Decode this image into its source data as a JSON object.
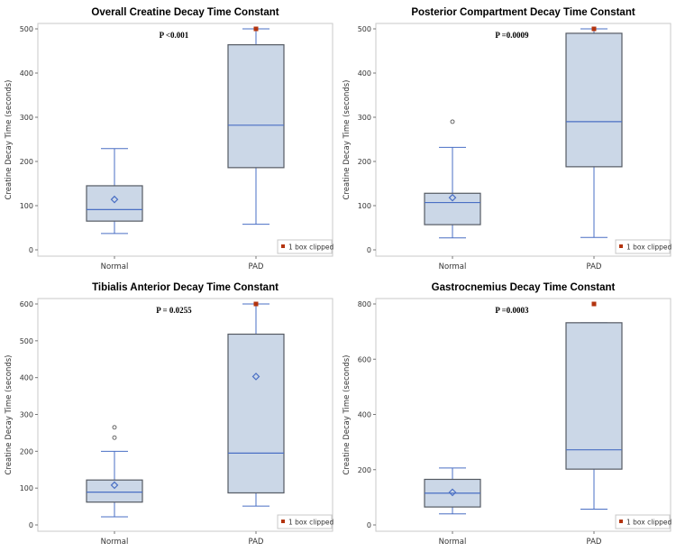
{
  "colors": {
    "box_fill": "#cbd7e7",
    "box_edge": "#555a63",
    "whisker": "#4a6fc4",
    "clipped_marker": "#b3340f",
    "outlier": "#555555",
    "frame": "#c8c8c8"
  },
  "chart_data": [
    {
      "type": "box",
      "title": "Overall Creatine Decay Time Constant",
      "ylabel": "Creatine Decay Time (seconds)",
      "ylim": [
        0,
        500
      ],
      "yticks": [
        "0",
        "100",
        "200",
        "300",
        "400",
        "500"
      ],
      "categories": [
        "Normal",
        "PAD"
      ],
      "annotation": "P <0.001",
      "legend": "1 box clipped",
      "legend_position": "bottom-right",
      "boxes": [
        {
          "category": "Normal",
          "whisker_low": 37,
          "q1": 65,
          "median": 91,
          "q3": 145,
          "whisker_high": 229,
          "mean": 114,
          "outliers": []
        },
        {
          "category": "PAD",
          "whisker_low": 58,
          "q1": 186,
          "median": 282,
          "q3": 464,
          "whisker_high": 500,
          "mean": null,
          "outliers": [],
          "clipped": 500
        }
      ]
    },
    {
      "type": "box",
      "title": "Posterior Compartment Decay Time Constant",
      "ylabel": "Creatine Decay Time (seconds)",
      "ylim": [
        0,
        500
      ],
      "yticks": [
        "0",
        "100",
        "200",
        "300",
        "400",
        "500"
      ],
      "categories": [
        "Normal",
        "PAD"
      ],
      "annotation": "P =0.0009",
      "legend": "1 box clipped",
      "legend_position": "bottom-right",
      "boxes": [
        {
          "category": "Normal",
          "whisker_low": 27,
          "q1": 57,
          "median": 107,
          "q3": 128,
          "whisker_high": 232,
          "mean": 118,
          "outliers": [
            290
          ]
        },
        {
          "category": "PAD",
          "whisker_low": 28,
          "q1": 188,
          "median": 290,
          "q3": 490,
          "whisker_high": 500,
          "mean": null,
          "outliers": [],
          "clipped": 500
        }
      ]
    },
    {
      "type": "box",
      "title": "Tibialis Anterior Decay Time Constant",
      "ylabel": "Creatine Decay Time (seconds)",
      "ylim": [
        0,
        600
      ],
      "yticks": [
        "0",
        "100",
        "200",
        "300",
        "400",
        "500",
        "600"
      ],
      "categories": [
        "Normal",
        "PAD"
      ],
      "annotation": "P = 0.0255",
      "legend": "1 box clipped",
      "legend_position": "bottom-right",
      "boxes": [
        {
          "category": "Normal",
          "whisker_low": 22,
          "q1": 62,
          "median": 89,
          "q3": 122,
          "whisker_high": 200,
          "mean": 108,
          "outliers": [
            237,
            265
          ]
        },
        {
          "category": "PAD",
          "whisker_low": 51,
          "q1": 87,
          "median": 195,
          "q3": 518,
          "whisker_high": 600,
          "mean": 403,
          "outliers": [],
          "clipped": 600
        }
      ]
    },
    {
      "type": "box",
      "title": "Gastrocnemius Decay Time Constant",
      "ylabel": "Creatine Decay Time (seconds)",
      "ylim": [
        0,
        800
      ],
      "yticks": [
        "0",
        "200",
        "400",
        "600",
        "800"
      ],
      "categories": [
        "Normal",
        "PAD"
      ],
      "annotation": "P =0.0003",
      "legend": "1 box clipped",
      "legend_position": "bottom-right",
      "boxes": [
        {
          "category": "Normal",
          "whisker_low": 40,
          "q1": 65,
          "median": 115,
          "q3": 165,
          "whisker_high": 206,
          "mean": 118,
          "outliers": []
        },
        {
          "category": "PAD",
          "whisker_low": 57,
          "q1": 202,
          "median": 272,
          "q3": 732,
          "whisker_high": 732,
          "mean": null,
          "outliers": [],
          "clipped": 800
        }
      ]
    }
  ]
}
